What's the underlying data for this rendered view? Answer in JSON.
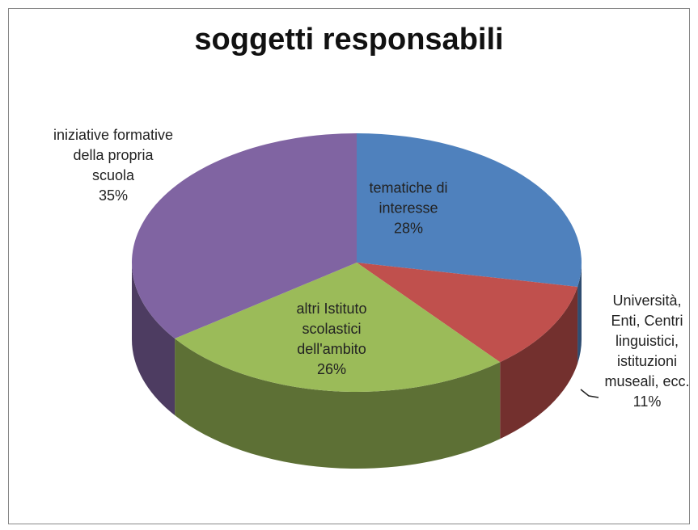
{
  "chart_data": {
    "type": "pie",
    "title": "soggetti responsabili",
    "categories": [
      "tematiche di interesse",
      "Università, Enti, Centri linguistici, istituzioni museali, ecc.",
      "altri Istituto scolastici dell'ambito",
      "iniziative formative della propria scuola"
    ],
    "values": [
      28,
      11,
      26,
      35
    ],
    "value_labels": [
      "28%",
      "11%",
      "26%",
      "35%"
    ],
    "colors": [
      "#4f81bd",
      "#c0504d",
      "#9bbb59",
      "#8064a2"
    ]
  }
}
